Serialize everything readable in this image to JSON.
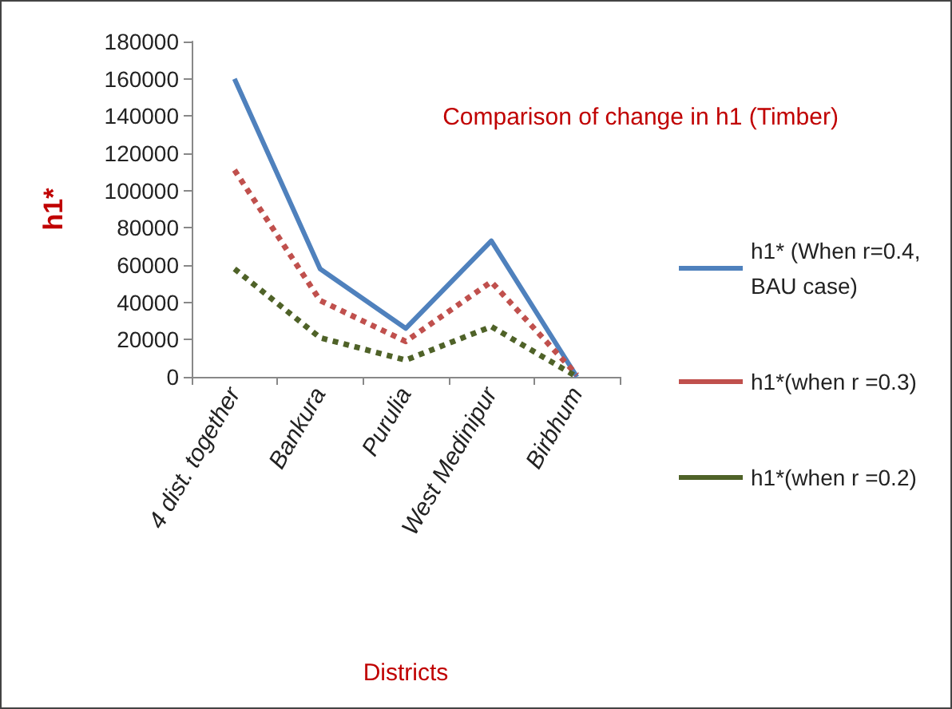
{
  "chart_data": {
    "type": "line",
    "title": "Comparison of change in h1 (Timber)",
    "xlabel": "Districts",
    "ylabel": "h1*",
    "categories": [
      "4 dist. together",
      "Bankura",
      "Purulia",
      "West Medinipur",
      "Birbhum"
    ],
    "series": [
      {
        "name": "h1* (When r=0.4,BAU case)",
        "color": "#4f81bd",
        "line_style": "solid",
        "values": [
          160000,
          58000,
          26000,
          73000,
          0
        ]
      },
      {
        "name": "h1*(when r =0.3)",
        "color": "#c0504d",
        "line_style": "dotted",
        "values": [
          111000,
          41000,
          19000,
          51000,
          1000
        ]
      },
      {
        "name": "h1*(when r =0.2)",
        "color": "#4f6228",
        "line_style": "dotted",
        "values": [
          58000,
          21000,
          9000,
          27000,
          0
        ]
      }
    ],
    "ylim": [
      0,
      180000
    ],
    "yticks": [
      0,
      20000,
      40000,
      60000,
      80000,
      100000,
      120000,
      140000,
      160000,
      180000
    ],
    "grid": false,
    "legend": "right",
    "marker": "none"
  }
}
